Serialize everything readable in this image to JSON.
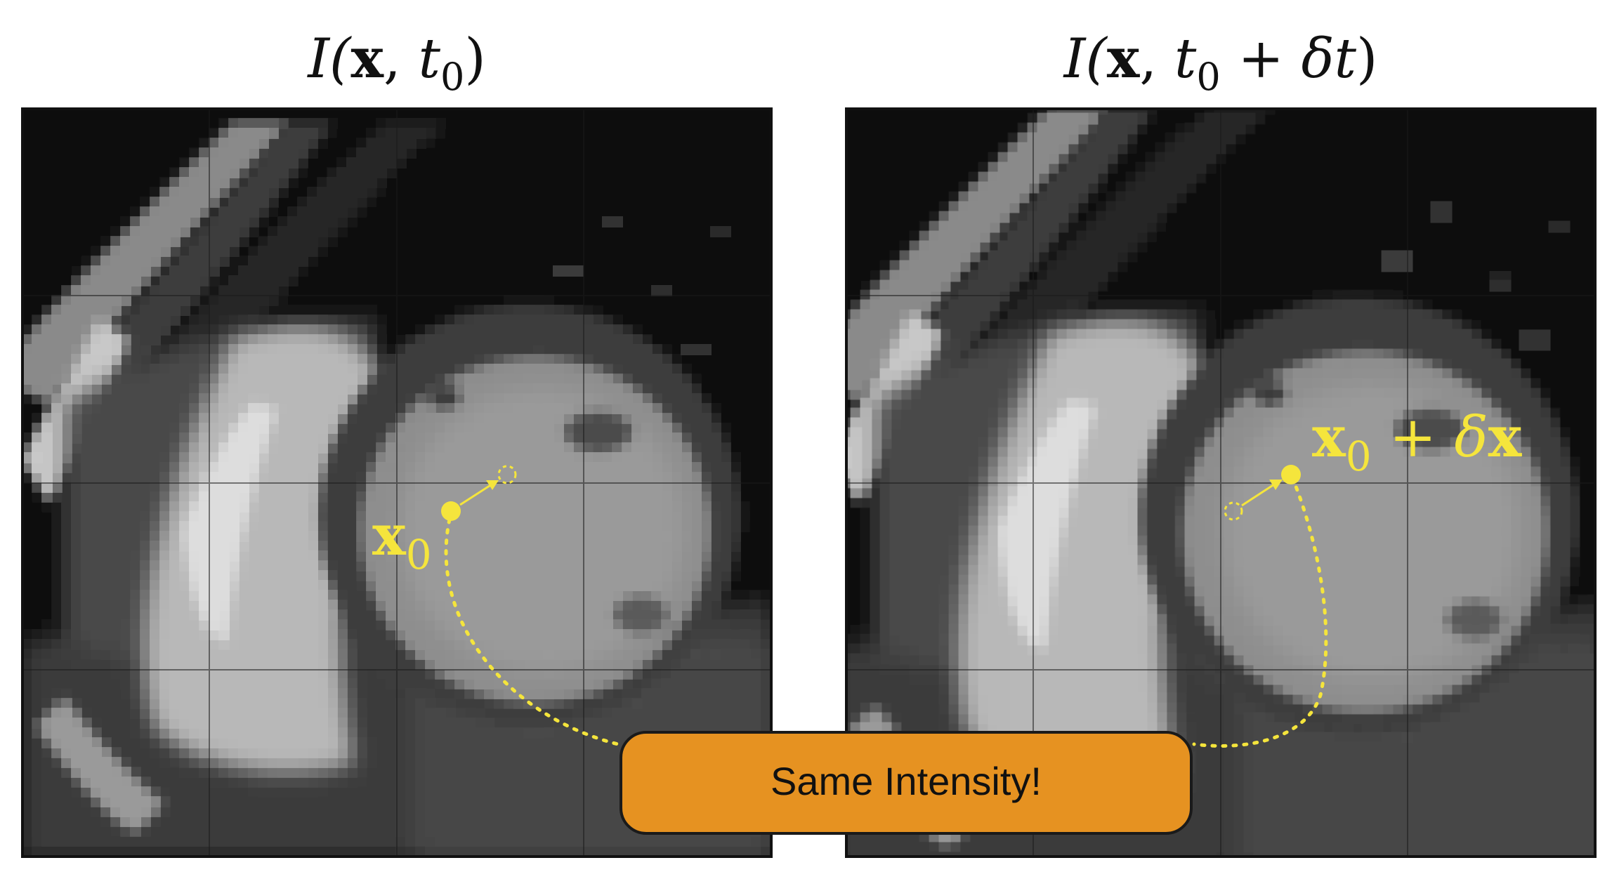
{
  "figure": {
    "left_panel": {
      "title_prefix": "I(",
      "title_var": "x",
      "title_sep": ", ",
      "title_time": "t",
      "title_sub": "0",
      "title_suffix": ")",
      "point_label": "x",
      "point_sub": "0"
    },
    "right_panel": {
      "title_prefix": "I(",
      "title_var": "x",
      "title_sep": ", ",
      "title_time": "t",
      "title_sub": "0",
      "title_plus": " + ",
      "title_delta": "δt",
      "title_suffix": ")",
      "point_label": "x",
      "point_sub": "0",
      "point_plus": " + ",
      "point_delta": "δ",
      "point_var": "x"
    },
    "callout": {
      "label": "Same Intensity!"
    },
    "colors": {
      "annotation_yellow": "#f5e53c",
      "callout_fill": "#e69221",
      "callout_border": "#1a1a1a",
      "frame": "#111111"
    }
  }
}
